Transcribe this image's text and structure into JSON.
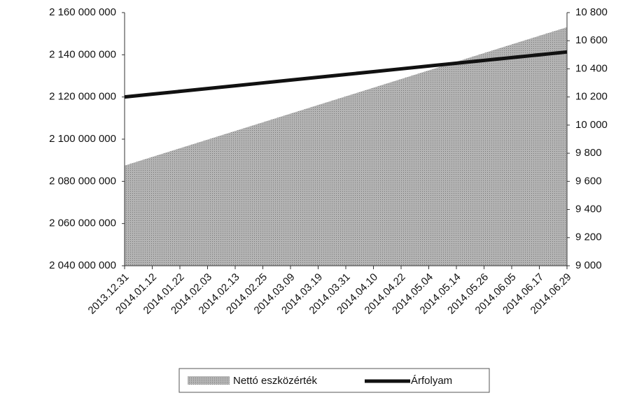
{
  "chart_data": {
    "type": "area-line",
    "categories": [
      "2013.12.31",
      "2014.01.12",
      "2014.01.22",
      "2014.02.03",
      "2014.02.13",
      "2014.02.25",
      "2014.03.09",
      "2014.03.19",
      "2014.03.31",
      "2014.04.10",
      "2014.04.22",
      "2014.05.04",
      "2014.05.14",
      "2014.05.26",
      "2014.06.05",
      "2014.06.17",
      "2014.06.29"
    ],
    "series": [
      {
        "name": "Nettó eszközérték",
        "color": "#b4b4b4",
        "values": [
          2087500000,
          2091600000,
          2095700000,
          2099800000,
          2103900000,
          2108000000,
          2112100000,
          2116200000,
          2120300000,
          2124400000,
          2128500000,
          2132600000,
          2136700000,
          2140800000,
          2144900000,
          2149000000,
          2153100000
        ]
      },
      {
        "name": "Árfolyam",
        "color": "#111111",
        "axis": "y2",
        "values": [
          10200,
          10220,
          10240,
          10260,
          10280,
          10300,
          10320,
          10340,
          10360,
          10380,
          10400,
          10420,
          10440,
          10460,
          10480,
          10500,
          10520
        ]
      }
    ],
    "ylim": [
      2040000000,
      2160000000
    ],
    "yticks": [
      {
        "value": 2040000000,
        "label": "2 040 000 000"
      },
      {
        "value": 2060000000,
        "label": "2 060 000 000"
      },
      {
        "value": 2080000000,
        "label": "2 080 000 000"
      },
      {
        "value": 2100000000,
        "label": "2 100 000 000"
      },
      {
        "value": 2120000000,
        "label": "2 120 000 000"
      },
      {
        "value": 2140000000,
        "label": "2 140 000 000"
      },
      {
        "value": 2160000000,
        "label": "2 160 000 000"
      }
    ],
    "y2lim": [
      9000,
      10800
    ],
    "y2ticks": [
      {
        "value": 9000,
        "label": "9 000"
      },
      {
        "value": 9200,
        "label": "9 200"
      },
      {
        "value": 9400,
        "label": "9 400"
      },
      {
        "value": 9600,
        "label": "9 600"
      },
      {
        "value": 9800,
        "label": "9 800"
      },
      {
        "value": 10000,
        "label": "10 000"
      },
      {
        "value": 10200,
        "label": "10 200"
      },
      {
        "value": 10400,
        "label": "10 400"
      },
      {
        "value": 10600,
        "label": "10 600"
      },
      {
        "value": 10800,
        "label": "10 800"
      }
    ],
    "legend": "bottom"
  }
}
